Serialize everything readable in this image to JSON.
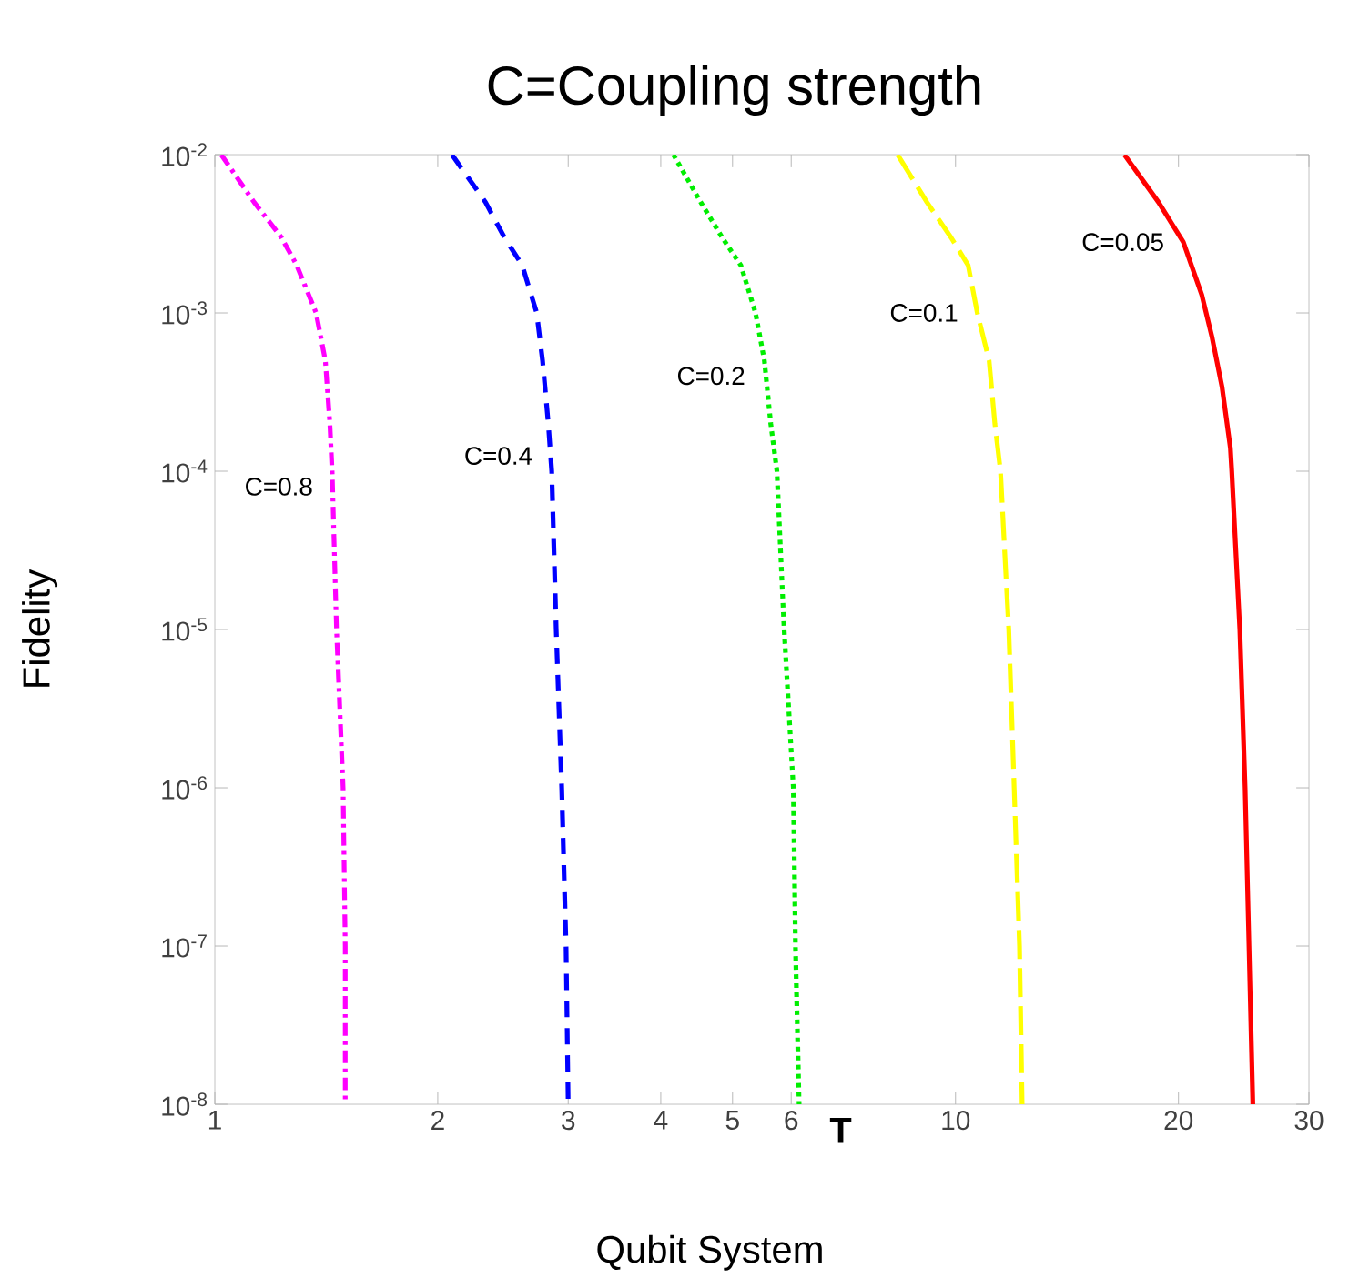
{
  "chart_data": {
    "type": "line",
    "title": "C=Coupling strength",
    "xlabel": "T",
    "ylabel": "Fidelity",
    "log": "xy",
    "grid": false,
    "legend": false,
    "marker": "none",
    "xlim": [
      1,
      30
    ],
    "ylim": [
      1e-08,
      0.01
    ],
    "xticks": [
      1,
      2,
      3,
      4,
      5,
      6,
      10,
      20,
      30
    ],
    "yticks": [
      {
        "value": 1e-08,
        "label": "10$^{-8}$"
      },
      {
        "value": 1e-07,
        "label": "10$^{-7}$"
      },
      {
        "value": 1e-06,
        "label": "10$^{-6}$"
      },
      {
        "value": 1e-05,
        "label": "10$^{-5}$"
      },
      {
        "value": 0.0001,
        "label": "10$^{-4}$"
      },
      {
        "value": 0.001,
        "label": "10$^{-3}$"
      },
      {
        "value": 0.01,
        "label": "10$^{-2}$"
      }
    ],
    "series": [
      {
        "name": "C=0.8",
        "color": "#ff00ff",
        "line_style": "dashdot",
        "x": [
          1.02,
          1.13,
          1.23,
          1.29,
          1.37,
          1.41,
          1.43,
          1.44,
          1.46,
          1.49,
          1.5,
          1.5
        ],
        "values": [
          0.01,
          0.005,
          0.003,
          0.002,
          0.001,
          0.0005,
          0.0002,
          0.0001,
          1e-05,
          1e-06,
          1e-07,
          1e-08
        ]
      },
      {
        "name": "C=0.4",
        "color": "#0000ff",
        "line_style": "dashed",
        "x": [
          2.09,
          2.32,
          2.46,
          2.6,
          2.72,
          2.77,
          2.82,
          2.85,
          2.89,
          2.94,
          2.98,
          3.0
        ],
        "values": [
          0.01,
          0.005,
          0.003,
          0.002,
          0.001,
          0.0005,
          0.0002,
          0.0001,
          1e-05,
          1e-06,
          1e-07,
          1e-08
        ]
      },
      {
        "name": "C=0.2",
        "color": "#00ee00",
        "line_style": "dotted",
        "x": [
          4.16,
          4.53,
          4.84,
          5.13,
          5.37,
          5.52,
          5.63,
          5.74,
          5.87,
          6.04,
          6.08,
          6.15
        ],
        "values": [
          0.01,
          0.005,
          0.003,
          0.002,
          0.001,
          0.0005,
          0.0002,
          0.0001,
          1e-05,
          1e-06,
          1e-07,
          1e-08
        ]
      },
      {
        "name": "C=0.1",
        "color": "#ffff00",
        "line_style": "longdashed",
        "x": [
          8.35,
          9.15,
          9.86,
          10.4,
          10.7,
          11.1,
          11.3,
          11.5,
          11.8,
          12.0,
          12.2,
          12.3
        ],
        "values": [
          0.01,
          0.005,
          0.003,
          0.002,
          0.001,
          0.0005,
          0.0002,
          0.0001,
          1e-05,
          1e-06,
          1e-07,
          1e-08
        ]
      },
      {
        "name": "C=0.05",
        "color": "#ff0000",
        "line_style": "solid",
        "x": [
          16.9,
          18.8,
          20.3,
          21.5,
          22.2,
          22.9,
          23.5,
          23.6,
          24.2,
          24.6,
          24.9,
          25.2
        ],
        "values": [
          0.01,
          0.005,
          0.0028,
          0.0013,
          0.0007,
          0.00034,
          0.00014,
          0.0001,
          1e-05,
          1e-06,
          1e-07,
          1e-08
        ]
      }
    ],
    "annotations": [
      "Qubit System"
    ]
  }
}
